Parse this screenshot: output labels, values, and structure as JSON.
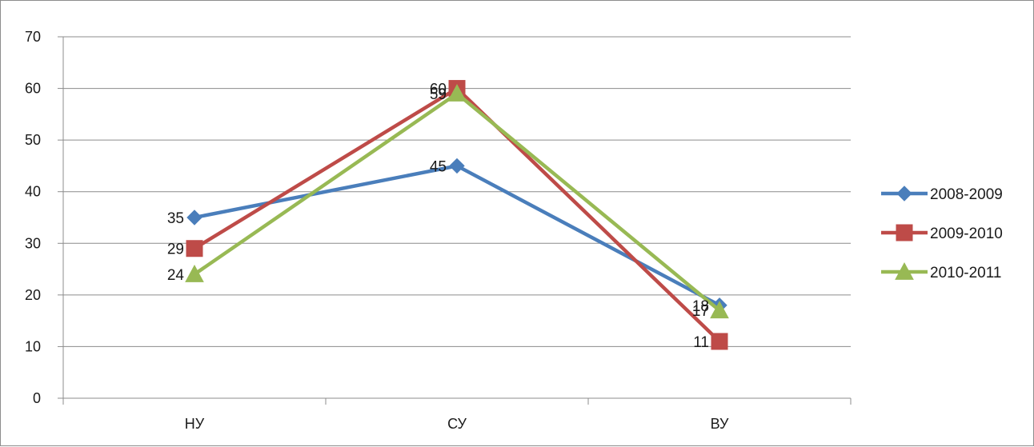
{
  "chart_data": {
    "type": "line",
    "title": "",
    "xlabel": "",
    "ylabel": "",
    "categories": [
      "НУ",
      "СУ",
      "ВУ"
    ],
    "ylim": [
      0,
      70
    ],
    "yticks": [
      0,
      10,
      20,
      30,
      40,
      50,
      60,
      70
    ],
    "grid": true,
    "legend": "right",
    "series": [
      {
        "name": "2008-2009",
        "values": [
          35,
          45,
          18
        ],
        "color": "#4a7ebb",
        "marker": "diamond"
      },
      {
        "name": "2009-2010",
        "values": [
          29,
          60,
          11
        ],
        "color": "#be4b48",
        "marker": "square"
      },
      {
        "name": "2010-2011",
        "values": [
          24,
          59,
          17
        ],
        "color": "#98b954",
        "marker": "triangle"
      }
    ]
  }
}
